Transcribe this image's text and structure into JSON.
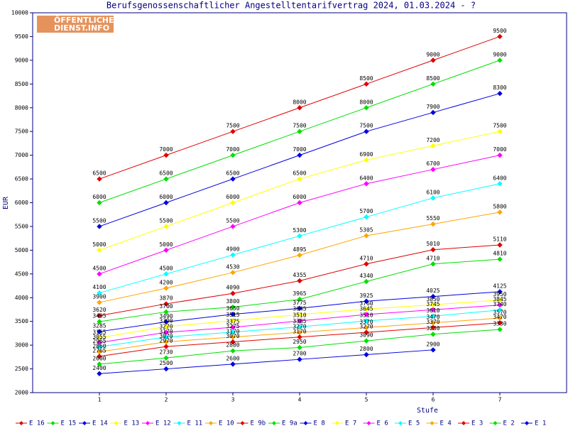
{
  "chart_data": {
    "type": "line",
    "title": "Berufsgenossenschaftlicher Angestelltentarifvertrag 2024, 01.03.2024 - ?",
    "logo": [
      "ÖFFENTLICHER",
      "DIENST.INFO"
    ],
    "x_label": "Stufe",
    "y_label": "EUR",
    "x": [
      1,
      2,
      3,
      4,
      5,
      6,
      7
    ],
    "xlim": [
      0,
      8
    ],
    "xticks": [
      1,
      2,
      3,
      4,
      5,
      6,
      7
    ],
    "ylim": [
      2000,
      10000
    ],
    "yticks": [
      2000,
      2500,
      3000,
      3500,
      4000,
      4500,
      5000,
      5500,
      6000,
      6500,
      7000,
      7500,
      8000,
      8500,
      9000,
      9500,
      10000
    ],
    "legend": "bottom",
    "series": [
      {
        "name": "E_16",
        "color": "#e00000",
        "values": [
          6500,
          7000,
          7500,
          8000,
          8500,
          9000,
          9500
        ]
      },
      {
        "name": "E_15",
        "color": "#00e000",
        "values": [
          6000,
          6500,
          7000,
          7500,
          8000,
          8500,
          9000
        ]
      },
      {
        "name": "E_14",
        "color": "#0000e0",
        "values": [
          5500,
          6000,
          6500,
          7000,
          7500,
          7900,
          8300
        ]
      },
      {
        "name": "E_13",
        "color": "#ffff00",
        "values": [
          5000,
          5500,
          6000,
          6500,
          6900,
          7200,
          7500
        ]
      },
      {
        "name": "E_12",
        "color": "#ff00ff",
        "values": [
          4500,
          5000,
          5500,
          6000,
          6400,
          6700,
          7000
        ]
      },
      {
        "name": "E_11",
        "color": "#00ffff",
        "values": [
          4100,
          4500,
          4900,
          5300,
          5700,
          6100,
          6400
        ]
      },
      {
        "name": "E_10",
        "color": "#ffa500",
        "values": [
          3900,
          4200,
          4530,
          4895,
          5305,
          5550,
          5800
        ]
      },
      {
        "name": "E_9b",
        "color": "#e00000",
        "values": [
          3620,
          3870,
          4090,
          4355,
          4710,
          5010,
          5110
        ]
      },
      {
        "name": "E_9a",
        "color": "#00e000",
        "values": [
          3495,
          3700,
          3800,
          3965,
          4340,
          4710,
          4810
        ]
      },
      {
        "name": "E_8",
        "color": "#0000e0",
        "values": [
          3285,
          3490,
          3650,
          3775,
          3925,
          4025,
          4125
        ]
      },
      {
        "name": "E_7",
        "color": "#ffff00",
        "values": [
          3155,
          3390,
          3515,
          3645,
          3760,
          3850,
          3950
        ]
      },
      {
        "name": "E_6",
        "color": "#ff00ff",
        "values": [
          3055,
          3270,
          3375,
          3510,
          3645,
          3745,
          3845
        ]
      },
      {
        "name": "E_5",
        "color": "#00ffff",
        "values": [
          2965,
          3170,
          3275,
          3385,
          3510,
          3610,
          3740
        ]
      },
      {
        "name": "E_4",
        "color": "#ffa500",
        "values": [
          2860,
          3070,
          3170,
          3270,
          3370,
          3470,
          3570
        ]
      },
      {
        "name": "E_3",
        "color": "#e00000",
        "values": [
          2765,
          2970,
          3070,
          3170,
          3270,
          3370,
          3470
        ]
      },
      {
        "name": "E_2",
        "color": "#00e000",
        "values": [
          2600,
          2730,
          2880,
          2950,
          3090,
          3230,
          3330
        ]
      },
      {
        "name": "E_1",
        "color": "#0000e0",
        "values": [
          2400,
          2500,
          2600,
          2700,
          2800,
          2900,
          null
        ]
      }
    ]
  }
}
